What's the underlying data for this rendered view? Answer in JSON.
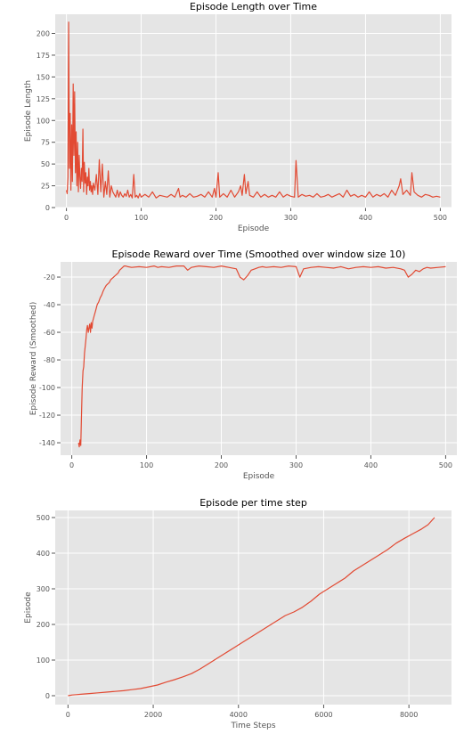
{
  "chart_data": [
    {
      "type": "line",
      "title": "Episode Length over Time",
      "xlabel": "Episode",
      "ylabel": "Episode Length",
      "xlim": [
        -15,
        515
      ],
      "ylim": [
        0,
        222
      ],
      "xticks": [
        0,
        100,
        200,
        300,
        400,
        500
      ],
      "yticks": [
        0,
        25,
        50,
        75,
        100,
        125,
        150,
        175,
        200
      ],
      "grid": true,
      "color": "#E24A33",
      "background": "#E5E5E5",
      "series": [
        {
          "x": [
            0,
            1,
            2,
            3,
            4,
            5,
            6,
            7,
            8,
            9,
            10,
            11,
            12,
            13,
            14,
            15,
            16,
            17,
            18,
            19,
            20,
            21,
            22,
            23,
            24,
            25,
            26,
            27,
            28,
            29,
            30,
            31,
            32,
            33,
            34,
            35,
            36,
            38,
            40,
            42,
            44,
            46,
            48,
            50,
            52,
            54,
            56,
            58,
            60,
            62,
            64,
            66,
            68,
            70,
            72,
            74,
            76,
            78,
            80,
            82,
            84,
            86,
            88,
            90,
            92,
            94,
            96,
            98,
            100,
            105,
            110,
            115,
            120,
            125,
            130,
            135,
            140,
            145,
            150,
            152,
            155,
            160,
            165,
            170,
            175,
            180,
            185,
            190,
            195,
            198,
            200,
            203,
            205,
            210,
            215,
            220,
            225,
            230,
            233,
            235,
            238,
            240,
            243,
            245,
            250,
            255,
            260,
            265,
            270,
            275,
            280,
            285,
            290,
            295,
            300,
            305,
            307,
            310,
            315,
            320,
            325,
            330,
            335,
            340,
            345,
            350,
            355,
            360,
            365,
            370,
            375,
            380,
            385,
            390,
            395,
            400,
            405,
            410,
            415,
            420,
            425,
            430,
            435,
            440,
            445,
            447,
            450,
            455,
            460,
            462,
            465,
            470,
            475,
            480,
            485,
            490,
            495,
            500
          ],
          "y": [
            20,
            16,
            35,
            213,
            45,
            108,
            20,
            95,
            30,
            142,
            60,
            133,
            40,
            87,
            25,
            75,
            18,
            60,
            35,
            22,
            45,
            30,
            90,
            18,
            52,
            28,
            40,
            15,
            35,
            25,
            45,
            20,
            30,
            18,
            25,
            15,
            28,
            20,
            38,
            15,
            55,
            18,
            50,
            12,
            30,
            15,
            42,
            12,
            25,
            18,
            15,
            12,
            20,
            12,
            18,
            14,
            12,
            16,
            13,
            20,
            12,
            15,
            11,
            38,
            12,
            14,
            11,
            16,
            12,
            15,
            12,
            18,
            11,
            14,
            13,
            12,
            15,
            12,
            22,
            12,
            14,
            12,
            16,
            12,
            13,
            15,
            12,
            18,
            12,
            22,
            12,
            40,
            12,
            16,
            12,
            20,
            12,
            18,
            25,
            14,
            38,
            16,
            30,
            14,
            12,
            18,
            12,
            15,
            12,
            14,
            12,
            18,
            12,
            15,
            13,
            12,
            54,
            12,
            15,
            13,
            14,
            12,
            16,
            12,
            13,
            15,
            12,
            14,
            16,
            12,
            20,
            13,
            15,
            12,
            14,
            12,
            18,
            12,
            15,
            13,
            16,
            12,
            20,
            14,
            25,
            33,
            15,
            20,
            14,
            40,
            18,
            14,
            12,
            15,
            14,
            12,
            13,
            12
          ]
        }
      ]
    },
    {
      "type": "line",
      "title": "Episode Reward over Time (Smoothed over window size 10)",
      "xlabel": "Episode",
      "ylabel": "Episode Reward (Smoothed)",
      "xlim": [
        -15,
        515
      ],
      "ylim": [
        -149,
        -9
      ],
      "xticks": [
        0,
        100,
        200,
        300,
        400,
        500
      ],
      "yticks": [
        -140,
        -120,
        -100,
        -80,
        -60,
        -40,
        -20
      ],
      "grid": true,
      "color": "#E24A33",
      "background": "#E5E5E5",
      "series": [
        {
          "x": [
            9,
            10,
            11,
            12,
            13,
            14,
            15,
            16,
            17,
            18,
            19,
            20,
            21,
            22,
            23,
            24,
            25,
            26,
            27,
            28,
            30,
            32,
            34,
            36,
            38,
            40,
            42,
            44,
            46,
            48,
            50,
            52,
            54,
            56,
            58,
            60,
            62,
            64,
            66,
            68,
            70,
            72,
            75,
            80,
            90,
            100,
            110,
            115,
            120,
            130,
            140,
            150,
            155,
            160,
            170,
            180,
            190,
            200,
            210,
            220,
            225,
            230,
            235,
            240,
            245,
            250,
            255,
            260,
            270,
            280,
            290,
            300,
            305,
            310,
            320,
            330,
            340,
            350,
            360,
            370,
            380,
            390,
            400,
            410,
            420,
            430,
            440,
            445,
            450,
            455,
            460,
            465,
            470,
            475,
            480,
            490,
            500
          ],
          "y": [
            -140,
            -143,
            -138,
            -142,
            -120,
            -100,
            -88,
            -85,
            -75,
            -70,
            -65,
            -58,
            -55,
            -60,
            -57,
            -54,
            -60,
            -53,
            -57,
            -52,
            -48,
            -44,
            -40,
            -38,
            -35,
            -33,
            -30,
            -28,
            -26,
            -25,
            -24,
            -22,
            -21,
            -20,
            -19,
            -18,
            -17,
            -15,
            -14,
            -13,
            -12,
            -12,
            -12.5,
            -13,
            -12.5,
            -13,
            -12,
            -13,
            -12.5,
            -13,
            -12,
            -12,
            -15,
            -13,
            -12,
            -12.5,
            -13,
            -12,
            -13,
            -14,
            -20,
            -22,
            -19,
            -15,
            -14,
            -13,
            -12.5,
            -13,
            -12.5,
            -13,
            -12,
            -12.5,
            -20,
            -14,
            -13,
            -12.5,
            -13,
            -13.5,
            -12.5,
            -14,
            -13,
            -12.5,
            -13,
            -12.5,
            -13.5,
            -13,
            -14,
            -15,
            -20,
            -18,
            -15,
            -16,
            -14,
            -13,
            -13.5,
            -13,
            -12.5
          ]
        }
      ]
    },
    {
      "type": "line",
      "title": "Episode per time step",
      "xlabel": "Time Steps",
      "ylabel": "Episode",
      "xlim": [
        -300,
        9000
      ],
      "ylim": [
        -25,
        520
      ],
      "xticks": [
        0,
        2000,
        4000,
        6000,
        8000
      ],
      "yticks": [
        0,
        100,
        200,
        300,
        400,
        500
      ],
      "grid": true,
      "color": "#E24A33",
      "background": "#E5E5E5",
      "series": [
        {
          "x": [
            0,
            100,
            200,
            300,
            400,
            500,
            700,
            900,
            1100,
            1300,
            1500,
            1700,
            1900,
            2100,
            2300,
            2500,
            2700,
            2900,
            3100,
            3300,
            3500,
            3700,
            3900,
            4100,
            4300,
            4500,
            4700,
            4900,
            5100,
            5300,
            5500,
            5700,
            5900,
            6100,
            6300,
            6500,
            6700,
            6900,
            7100,
            7300,
            7500,
            7700,
            7900,
            8100,
            8300,
            8450,
            8600
          ],
          "y": [
            0,
            2,
            3,
            4,
            5,
            6,
            8,
            10,
            12,
            14,
            17,
            20,
            25,
            30,
            38,
            45,
            53,
            62,
            75,
            90,
            105,
            120,
            135,
            150,
            165,
            180,
            195,
            210,
            225,
            235,
            248,
            265,
            285,
            300,
            315,
            330,
            350,
            365,
            380,
            395,
            410,
            428,
            442,
            455,
            468,
            480,
            500
          ]
        }
      ]
    }
  ]
}
